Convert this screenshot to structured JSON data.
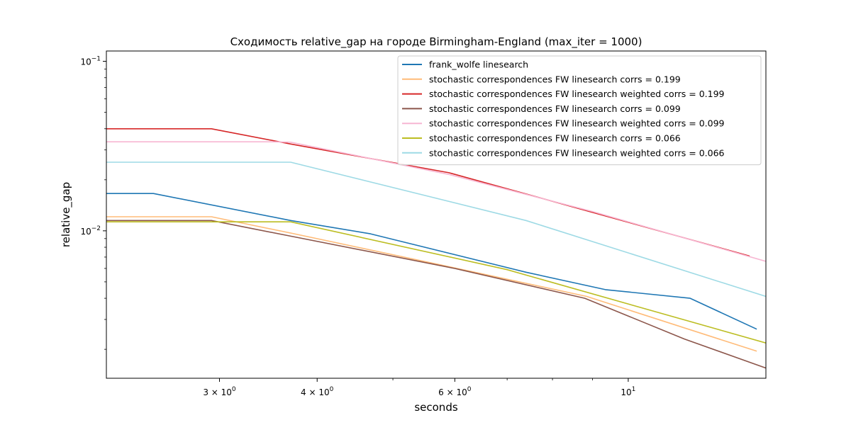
{
  "chart_data": {
    "type": "line",
    "title": "Сходимость relative_gap на городе Birmingham-England  (max_iter = 1000)",
    "xlabel": "seconds",
    "ylabel": "relative_gap",
    "xscale": "log",
    "yscale": "log",
    "xlim": [
      2.15,
      15.0
    ],
    "ylim": [
      0.00135,
      0.115
    ],
    "xticks": [
      {
        "value": 3,
        "label": "3 × 10⁰",
        "mant": "3 × 10",
        "exp": "0"
      },
      {
        "value": 4,
        "label": "4 × 10⁰",
        "mant": "4 × 10",
        "exp": "0"
      },
      {
        "value": 6,
        "label": "6 × 10⁰",
        "mant": "6 × 10",
        "exp": "0"
      },
      {
        "value": 10,
        "label": "10¹",
        "mant": "10",
        "exp": "1"
      }
    ],
    "xminor": [
      5,
      7,
      8,
      9
    ],
    "yticks": [
      {
        "value": 0.1,
        "label": "10⁻¹",
        "mant": "10",
        "exp": "−1"
      },
      {
        "value": 0.01,
        "label": "10⁻²",
        "mant": "10",
        "exp": "−2"
      }
    ],
    "yminor": [
      0.002,
      0.003,
      0.004,
      0.005,
      0.006,
      0.007,
      0.008,
      0.009,
      0.02,
      0.03,
      0.04,
      0.05,
      0.06,
      0.07,
      0.08,
      0.09
    ],
    "legend_position": "top-right",
    "series": [
      {
        "name": "frank_wolfe linesearch",
        "color": "#1f77b4",
        "x": [
          2.15,
          2.47,
          3.7,
          4.68,
          7.4,
          9.35,
          12.0,
          14.6
        ],
        "y": [
          0.0166,
          0.0166,
          0.0115,
          0.0096,
          0.0057,
          0.0045,
          0.004,
          0.00263
        ]
      },
      {
        "name": "stochastic correspondences FW linesearch corrs = 0.199",
        "color": "#ffbb78",
        "x": [
          2.15,
          2.93,
          3.7,
          5.75,
          8.85,
          14.6
        ],
        "y": [
          0.0121,
          0.0121,
          0.0097,
          0.0063,
          0.0041,
          0.00195
        ]
      },
      {
        "name": "stochastic correspondences FW linesearch weighted corrs = 0.199",
        "color": "#d62728",
        "x": [
          2.15,
          2.93,
          3.7,
          5.9,
          9.2,
          14.3
        ],
        "y": [
          0.04,
          0.04,
          0.0325,
          0.022,
          0.0125,
          0.0071
        ]
      },
      {
        "name": "stochastic correspondences FW linesearch corrs = 0.099",
        "color": "#8c564b",
        "x": [
          2.15,
          2.93,
          3.7,
          6.0,
          8.8,
          11.8,
          15.0
        ],
        "y": [
          0.0115,
          0.0115,
          0.0093,
          0.006,
          0.004,
          0.0023,
          0.00155
        ]
      },
      {
        "name": "stochastic correspondences FW linesearch weighted corrs = 0.099",
        "color": "#f7b6d2",
        "x": [
          2.15,
          3.52,
          3.7,
          5.9,
          9.0,
          15.0
        ],
        "y": [
          0.0335,
          0.0335,
          0.0333,
          0.0215,
          0.013,
          0.0066
        ]
      },
      {
        "name": "stochastic correspondences FW linesearch corrs = 0.066",
        "color": "#bcbd22",
        "x": [
          2.15,
          2.93,
          3.7,
          7.0,
          15.0
        ],
        "y": [
          0.0113,
          0.0113,
          0.0113,
          0.0059,
          0.00218
        ]
      },
      {
        "name": "stochastic correspondences FW linesearch weighted corrs = 0.066",
        "color": "#9edae5",
        "x": [
          2.15,
          3.7,
          7.4,
          15.0
        ],
        "y": [
          0.0254,
          0.0254,
          0.0115,
          0.0041
        ]
      }
    ]
  }
}
